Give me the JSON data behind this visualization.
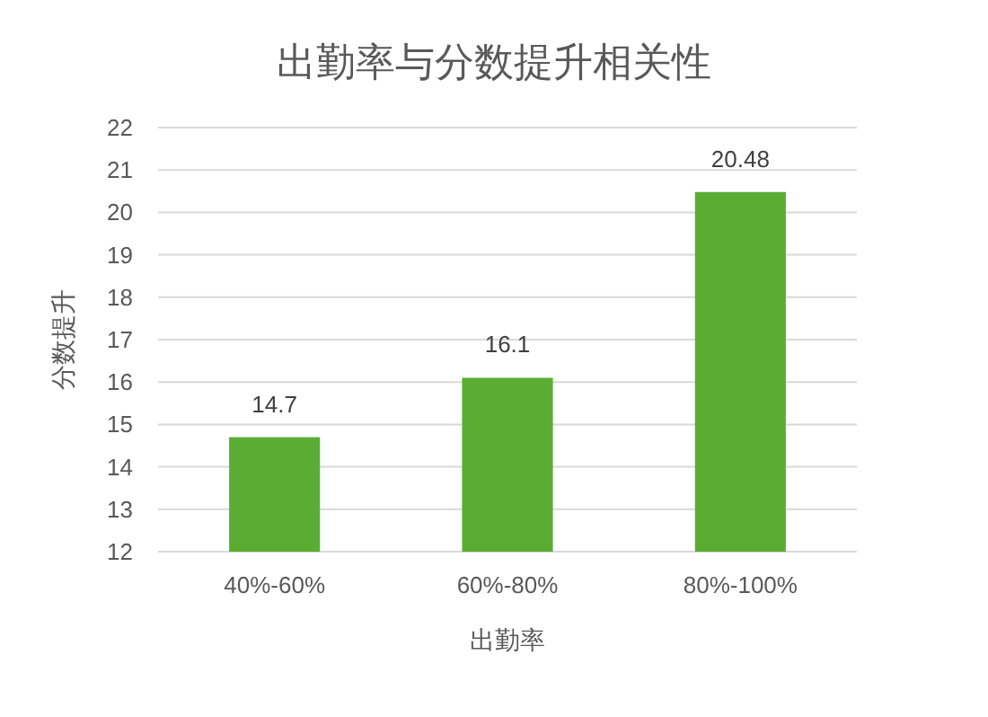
{
  "chart_data": {
    "type": "bar",
    "title": "出勤率与分数提升相关性",
    "xlabel": "出勤率",
    "ylabel": "分数提升",
    "categories": [
      "40%-60%",
      "60%-80%",
      "80%-100%"
    ],
    "values": [
      14.7,
      16.1,
      20.48
    ],
    "color": "#5aad32",
    "ylim": [
      12,
      22
    ],
    "yticks": [
      12,
      13,
      14,
      15,
      16,
      17,
      18,
      19,
      20,
      21,
      22
    ],
    "grid": "y",
    "data_labels": true
  }
}
